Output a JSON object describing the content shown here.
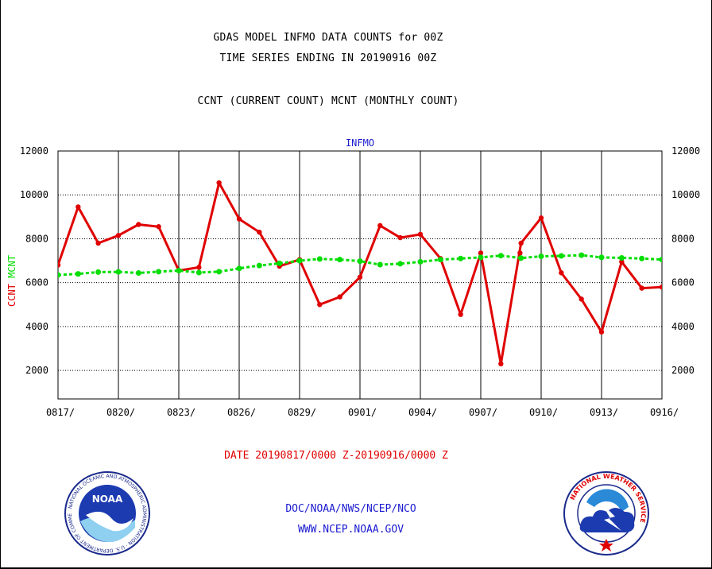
{
  "header": {
    "title_line1": "GDAS MODEL INFMO DATA COUNTS for 00Z",
    "title_line2": "TIME SERIES ENDING IN 20190916 00Z",
    "subtitle": "CCNT (CURRENT COUNT) MCNT (MONTHLY COUNT)"
  },
  "footer": {
    "date_range": "DATE 20190817/0000 Z-20190916/0000 Z",
    "credit_line1": "DOC/NOAA/NWS/NCEP/NCO",
    "credit_line2": "WWW.NCEP.NOAA.GOV"
  },
  "logos": {
    "noaa_text": "NOAA",
    "noaa_ring_text": "NATIONAL OCEANIC AND ATMOSPHERIC ADMINISTRATION · U.S. DEPARTMENT OF COMMERCE",
    "nws_ring_text": "NATIONAL WEATHER SERVICE"
  },
  "colors": {
    "ccnt": "#e00000",
    "mcnt": "#00dd00",
    "plot_title": "#1a1ad0",
    "grid": "#000000"
  },
  "chart_data": {
    "type": "line",
    "title": "INFMO",
    "ylabel_parts": [
      {
        "text": "CCNT",
        "color": "#e00000"
      },
      {
        "text": "MCNT",
        "color": "#00dd00"
      }
    ],
    "ylim": [
      700,
      12000
    ],
    "yticks": [
      2000,
      4000,
      6000,
      8000,
      10000,
      12000
    ],
    "xlabels": [
      "0817/",
      "0820/",
      "0823/",
      "0826/",
      "0829/",
      "0901/",
      "0904/",
      "0907/",
      "0910/",
      "0913/",
      "0916/"
    ],
    "x_dates": [
      "0817",
      "0818",
      "0819",
      "0820",
      "0821",
      "0822",
      "0823",
      "0824",
      "0825",
      "0826",
      "0827",
      "0828",
      "0829",
      "0830",
      "0831",
      "0901",
      "0902",
      "0903",
      "0904",
      "0905",
      "0906",
      "0907",
      "0908",
      "0909",
      "0910",
      "0911",
      "0912",
      "0913",
      "0914",
      "0915",
      "0916"
    ],
    "grid": "vertical solid every 3 days, horizontal dotted",
    "series": [
      {
        "name": "CCNT",
        "color": "#e00000",
        "values": [
          6800,
          9450,
          7800,
          8150,
          8650,
          8550,
          6550,
          6700,
          10550,
          8900,
          8300,
          6750,
          7050,
          5000,
          5350,
          6250,
          8600,
          8050,
          8200,
          7100,
          4550,
          7350,
          2300,
          7800,
          8950,
          6450,
          5250,
          3750,
          6950,
          5750,
          5800
        ],
        "extra_points": [
          {
            "x": 22.95,
            "y": 7350
          }
        ]
      },
      {
        "name": "MCNT",
        "color": "#00dd00",
        "values": [
          6350,
          6400,
          6480,
          6490,
          6440,
          6500,
          6550,
          6460,
          6500,
          6650,
          6780,
          6880,
          7000,
          7080,
          7050,
          6980,
          6820,
          6860,
          6950,
          7050,
          7100,
          7150,
          7230,
          7120,
          7200,
          7220,
          7250,
          7150,
          7130,
          7100,
          7050
        ]
      }
    ]
  }
}
